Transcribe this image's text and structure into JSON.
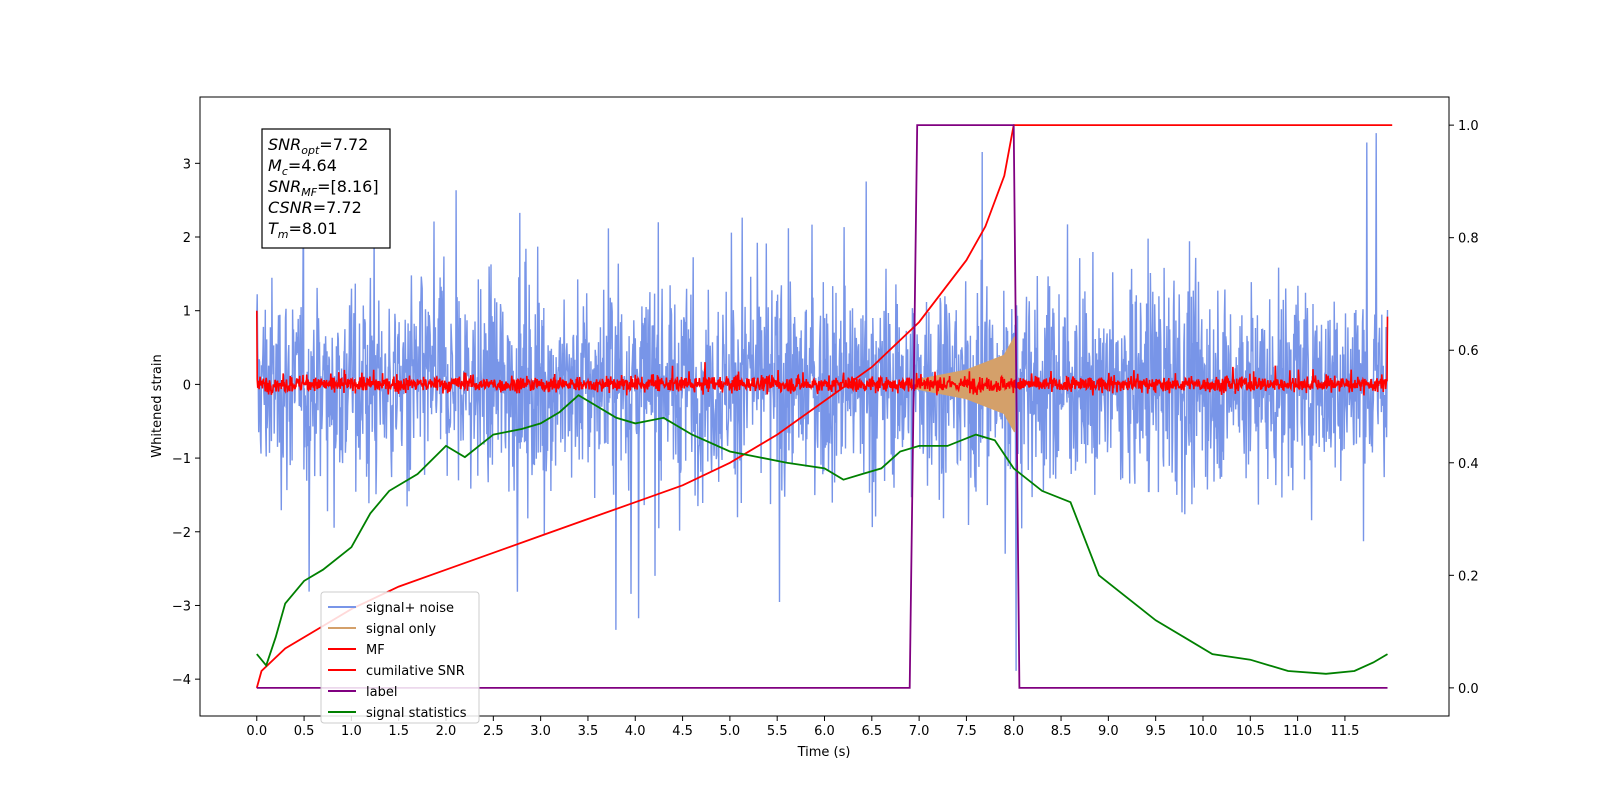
{
  "chart_data": {
    "type": "line",
    "xlabel": "Time (s)",
    "ylabel": "Whitened strain",
    "xlim": [
      -0.6,
      12.6
    ],
    "ylim": [
      -4.5,
      3.9
    ],
    "y2lim": [
      -0.05,
      1.05
    ],
    "xticks": [
      "0.0",
      "0.5",
      "1.0",
      "1.5",
      "2.0",
      "2.5",
      "3.0",
      "3.5",
      "4.0",
      "4.5",
      "5.0",
      "5.5",
      "6.0",
      "6.5",
      "7.0",
      "7.5",
      "8.0",
      "8.5",
      "9.0",
      "9.5",
      "10.0",
      "10.5",
      "11.0",
      "11.5"
    ],
    "yticks": [
      "3",
      "2",
      "1",
      "0",
      "−1",
      "−2",
      "−3",
      "−4"
    ],
    "y2ticks": [
      "1.0",
      "0.8",
      "0.6",
      "0.4",
      "0.2",
      "0.0"
    ],
    "annotation": [
      {
        "sym": "SNR",
        "sub": "opt",
        "val": "=7.72"
      },
      {
        "sym": "M",
        "sub": "c",
        "val": "=4.64"
      },
      {
        "sym": "SNR",
        "sub": "MF",
        "val": "=[8.16]"
      },
      {
        "sym": "CSNR",
        "sub": "",
        "val": "=7.72"
      },
      {
        "sym": "T",
        "sub": "m",
        "val": "=8.01"
      }
    ],
    "legend_position": "lower-left",
    "series": [
      {
        "name": "signal+ noise",
        "color": "#7895e8",
        "axis": "left",
        "noise_envelope": {
          "low": -2.8,
          "high": 2.9,
          "median": 0.0
        }
      },
      {
        "name": "signal only",
        "color": "#d4a06a",
        "axis": "left",
        "chirp": {
          "x": [
            6.9,
            7.5,
            7.9,
            8.01
          ],
          "amplitude": [
            0.05,
            0.2,
            0.4,
            0.65
          ]
        }
      },
      {
        "name": "MF",
        "color": "#ff0000",
        "axis": "left",
        "noise_envelope": {
          "low": -0.15,
          "high": 0.3,
          "median": 0.0
        }
      },
      {
        "name": "cumilative SNR",
        "color": "#ff0000",
        "axis": "right",
        "x": [
          0.0,
          0.05,
          0.3,
          0.7,
          1.0,
          1.5,
          2.0,
          2.5,
          3.0,
          3.5,
          4.0,
          4.5,
          5.0,
          5.5,
          6.0,
          6.5,
          7.0,
          7.5,
          7.7,
          7.9,
          8.0,
          8.02,
          12.0
        ],
        "y": [
          0.0,
          0.03,
          0.07,
          0.11,
          0.14,
          0.18,
          0.21,
          0.24,
          0.27,
          0.3,
          0.33,
          0.36,
          0.4,
          0.45,
          0.51,
          0.57,
          0.65,
          0.76,
          0.82,
          0.91,
          1.0,
          1.0,
          1.0
        ]
      },
      {
        "name": "label",
        "color": "#800080",
        "axis": "right",
        "x": [
          0.0,
          6.9,
          6.98,
          8.0,
          8.06,
          11.95
        ],
        "y": [
          0,
          0,
          1,
          1,
          0,
          0
        ]
      },
      {
        "name": "signal statistics",
        "color": "#008000",
        "axis": "right",
        "x": [
          0.0,
          0.1,
          0.2,
          0.3,
          0.5,
          0.7,
          1.0,
          1.2,
          1.4,
          1.7,
          2.0,
          2.2,
          2.5,
          2.8,
          3.0,
          3.2,
          3.4,
          3.6,
          3.8,
          4.0,
          4.3,
          4.6,
          5.0,
          5.3,
          5.6,
          6.0,
          6.2,
          6.4,
          6.6,
          6.8,
          7.0,
          7.3,
          7.6,
          7.8,
          8.0,
          8.3,
          8.6,
          8.9,
          9.2,
          9.5,
          9.8,
          10.1,
          10.5,
          10.9,
          11.3,
          11.6,
          11.8,
          11.95
        ],
        "y": [
          0.06,
          0.04,
          0.09,
          0.15,
          0.19,
          0.21,
          0.25,
          0.31,
          0.35,
          0.38,
          0.43,
          0.41,
          0.45,
          0.46,
          0.47,
          0.49,
          0.52,
          0.5,
          0.48,
          0.47,
          0.48,
          0.45,
          0.42,
          0.41,
          0.4,
          0.39,
          0.37,
          0.38,
          0.39,
          0.42,
          0.43,
          0.43,
          0.45,
          0.44,
          0.39,
          0.35,
          0.33,
          0.2,
          0.16,
          0.12,
          0.09,
          0.06,
          0.05,
          0.03,
          0.025,
          0.03,
          0.045,
          0.06
        ]
      }
    ]
  }
}
